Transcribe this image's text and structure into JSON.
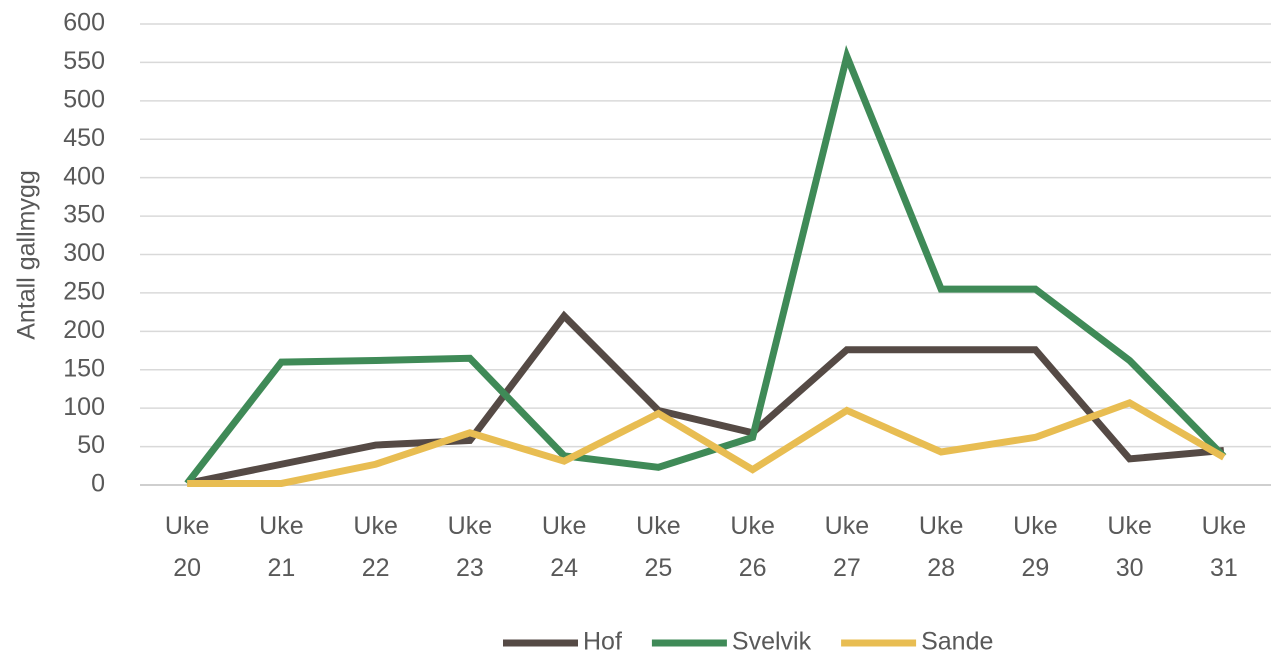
{
  "chart_data": {
    "type": "line",
    "y_label": "Antall gallmygg",
    "categories": [
      "Uke 20",
      "Uke 21",
      "Uke 22",
      "Uke 23",
      "Uke 24",
      "Uke 25",
      "Uke 26",
      "Uke 27",
      "Uke 28",
      "Uke 29",
      "Uke 30",
      "Uke 31"
    ],
    "series": [
      {
        "name": "Hof",
        "color": "#554a45",
        "values": [
          2,
          27,
          52,
          58,
          220,
          97,
          68,
          176,
          176,
          176,
          34,
          45
        ]
      },
      {
        "name": "Svelvik",
        "color": "#3f8a57",
        "values": [
          2,
          160,
          162,
          165,
          38,
          23,
          62,
          558,
          255,
          255,
          162,
          37
        ]
      },
      {
        "name": "Sande",
        "color": "#e8bd52",
        "values": [
          2,
          2,
          27,
          68,
          31,
          93,
          20,
          97,
          43,
          62,
          107,
          36
        ]
      }
    ],
    "ylim": [
      0,
      600
    ],
    "yticks": [
      0,
      50,
      100,
      150,
      200,
      250,
      300,
      350,
      400,
      450,
      500,
      550,
      600
    ],
    "grid": true,
    "legend": "bottom"
  }
}
